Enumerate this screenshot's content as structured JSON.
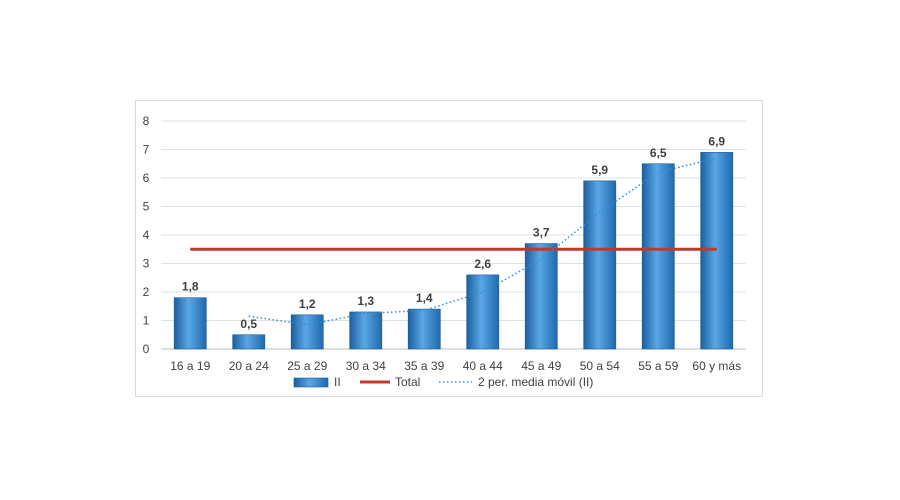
{
  "chart_data": {
    "type": "bar",
    "categories": [
      "16 a 19",
      "20 a 24",
      "25 a 29",
      "30 a 34",
      "35 a 39",
      "40 a 44",
      "45 a 49",
      "50 a 54",
      "55 a 59",
      "60 y más"
    ],
    "series": [
      {
        "name": "II",
        "type": "bar",
        "values": [
          1.8,
          0.5,
          1.2,
          1.3,
          1.4,
          2.6,
          3.7,
          5.9,
          6.5,
          6.9
        ],
        "color": "#2f7ec4"
      },
      {
        "name": "Total",
        "type": "line",
        "values": [
          3.5,
          3.5,
          3.5,
          3.5,
          3.5,
          3.5,
          3.5,
          3.5,
          3.5,
          3.5
        ],
        "color": "#c0392b"
      },
      {
        "name": "2 per. media móvil (II)",
        "type": "line-dotted",
        "values": [
          null,
          1.15,
          0.85,
          1.25,
          1.35,
          2.0,
          3.15,
          4.8,
          6.2,
          6.7
        ],
        "color": "#2f8fd8"
      }
    ],
    "data_labels": [
      "1,8",
      "0,5",
      "1,2",
      "1,3",
      "1,4",
      "2,6",
      "3,7",
      "5,9",
      "6,5",
      "6,9"
    ],
    "yticks": [
      "0",
      "1",
      "2",
      "3",
      "4",
      "5",
      "6",
      "7",
      "8"
    ],
    "ylim": [
      0,
      8
    ],
    "grid": true,
    "legend_position": "bottom",
    "title": "",
    "xlabel": "",
    "ylabel": ""
  }
}
